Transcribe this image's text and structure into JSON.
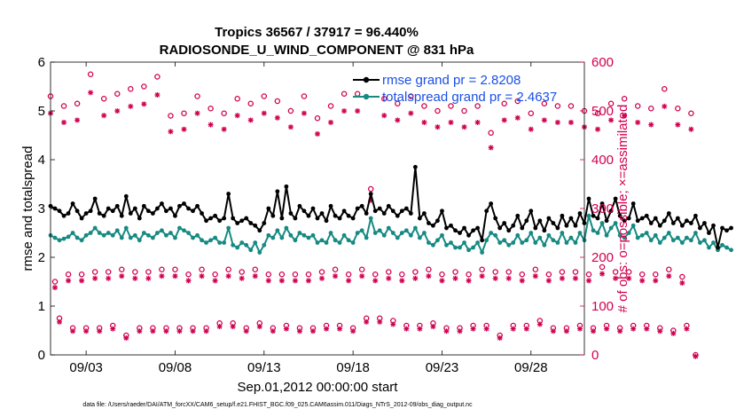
{
  "chart_data": {
    "type": "line",
    "title_line1": "Tropics 36567 / 37917 = 96.440%",
    "title_line2": "RADIOSONDE_U_WIND_COMPONENT @ 831 hPa",
    "xlabel": "Sep.01,2012 00:00:00 start",
    "ylabel_left": "rmse and totalspread",
    "ylabel_right": "# of obs: o=possible; ×=assimilated",
    "footer": "data file: /Users/raeder/DAI/ATM_forcXX/CAM6_setup/f.e21.FHIST_BGC.f09_025.CAM6assim.011/Diags_NTrS_2012-09/obs_diag_output.nc",
    "xlim": [
      1.0,
      31.0
    ],
    "ylim_left": [
      0,
      6
    ],
    "ylim_right": [
      0,
      600
    ],
    "x_ticks": [
      3,
      8,
      13,
      18,
      23,
      28
    ],
    "x_tick_labels": [
      "09/03",
      "09/08",
      "09/13",
      "09/18",
      "09/23",
      "09/28"
    ],
    "y_ticks_left": [
      0,
      1,
      2,
      3,
      4,
      5,
      6
    ],
    "y_ticks_right": [
      0,
      100,
      200,
      300,
      400,
      500,
      600
    ],
    "legend": [
      "rmse grand pr = 2.8208",
      "totalspread grand pr = 2.4637"
    ],
    "series": [
      {
        "name": "rmse",
        "color": "#000000",
        "x_start": 1.0,
        "dx": 0.25,
        "values": [
          3.05,
          3.0,
          2.95,
          2.85,
          2.9,
          3.1,
          2.95,
          2.8,
          2.9,
          2.95,
          3.2,
          2.9,
          2.85,
          3.0,
          2.95,
          3.05,
          2.85,
          3.25,
          2.9,
          3.0,
          2.8,
          3.05,
          2.95,
          2.9,
          3.0,
          3.1,
          2.95,
          3.0,
          2.85,
          3.05,
          3.1,
          3.0,
          2.95,
          3.05,
          2.9,
          2.75,
          2.8,
          2.85,
          2.75,
          2.8,
          3.3,
          2.8,
          2.7,
          2.75,
          2.8,
          2.7,
          2.65,
          2.55,
          2.7,
          3.0,
          2.85,
          3.35,
          2.8,
          3.45,
          2.9,
          2.8,
          3.05,
          2.95,
          2.85,
          3.0,
          2.8,
          2.9,
          2.75,
          3.05,
          2.85,
          2.8,
          2.95,
          2.85,
          2.8,
          3.0,
          3.05,
          2.9,
          3.3,
          2.95,
          3.0,
          2.9,
          3.05,
          2.95,
          2.85,
          2.95,
          3.0,
          2.9,
          3.85,
          2.8,
          2.9,
          2.7,
          2.65,
          2.75,
          2.95,
          2.6,
          2.65,
          2.55,
          2.5,
          2.6,
          2.45,
          2.55,
          2.6,
          2.35,
          2.95,
          3.1,
          2.8,
          2.6,
          2.7,
          2.55,
          2.65,
          2.85,
          2.6,
          2.75,
          2.95,
          2.6,
          2.75,
          2.55,
          2.8,
          2.7,
          2.6,
          2.85,
          2.65,
          2.8,
          2.65,
          2.9,
          2.7,
          3.2,
          2.85,
          2.8,
          3.1,
          2.75,
          2.95,
          3.2,
          2.85,
          2.75,
          2.8,
          3.1,
          2.75,
          2.8,
          2.85,
          2.7,
          2.8,
          2.65,
          2.75,
          2.9,
          2.7,
          2.8,
          2.65,
          2.75,
          2.7,
          2.85,
          2.6,
          2.7,
          2.5,
          2.65,
          2.2,
          2.6,
          2.55,
          2.6
        ]
      },
      {
        "name": "totalspread",
        "color": "#168a82",
        "x_start": 1.0,
        "dx": 0.25,
        "values": [
          2.45,
          2.4,
          2.35,
          2.38,
          2.42,
          2.5,
          2.4,
          2.35,
          2.45,
          2.5,
          2.6,
          2.5,
          2.45,
          2.5,
          2.45,
          2.55,
          2.4,
          2.6,
          2.4,
          2.45,
          2.35,
          2.5,
          2.45,
          2.4,
          2.5,
          2.55,
          2.45,
          2.5,
          2.4,
          2.6,
          2.55,
          2.5,
          2.4,
          2.45,
          2.35,
          2.3,
          2.35,
          2.4,
          2.3,
          2.3,
          2.6,
          2.25,
          2.2,
          2.3,
          2.25,
          2.15,
          2.3,
          2.1,
          2.25,
          2.45,
          2.4,
          2.55,
          2.4,
          2.6,
          2.45,
          2.35,
          2.5,
          2.45,
          2.4,
          2.45,
          2.3,
          2.35,
          2.3,
          2.5,
          2.35,
          2.3,
          2.45,
          2.35,
          2.3,
          2.5,
          2.55,
          2.4,
          2.8,
          2.5,
          2.55,
          2.45,
          2.6,
          2.5,
          2.4,
          2.5,
          2.55,
          2.45,
          2.6,
          2.4,
          2.5,
          2.3,
          2.25,
          2.35,
          2.45,
          2.25,
          2.3,
          2.2,
          2.2,
          2.3,
          2.15,
          2.2,
          2.3,
          2.1,
          2.35,
          2.5,
          2.45,
          2.3,
          2.35,
          2.25,
          2.3,
          2.45,
          2.3,
          2.35,
          2.5,
          2.3,
          2.4,
          2.25,
          2.45,
          2.35,
          2.3,
          2.5,
          2.3,
          2.4,
          2.3,
          2.5,
          2.35,
          2.85,
          2.55,
          2.5,
          2.7,
          2.45,
          2.6,
          2.7,
          2.45,
          2.4,
          2.5,
          2.65,
          2.4,
          2.45,
          2.5,
          2.35,
          2.45,
          2.3,
          2.4,
          2.5,
          2.35,
          2.4,
          2.3,
          2.4,
          2.35,
          2.5,
          2.3,
          2.35,
          2.2,
          2.3,
          2.15,
          2.25,
          2.2,
          2.15
        ]
      }
    ],
    "obs_counts": {
      "color": "#d1004f",
      "x_start": 1.0,
      "dx": 0.25,
      "possible": [
        530,
        150,
        75,
        510,
        165,
        55,
        515,
        165,
        55,
        575,
        170,
        55,
        525,
        170,
        60,
        535,
        175,
        40,
        545,
        170,
        55,
        550,
        170,
        55,
        570,
        175,
        55,
        490,
        175,
        55,
        495,
        165,
        55,
        530,
        175,
        55,
        505,
        165,
        65,
        495,
        175,
        65,
        525,
        170,
        55,
        515,
        175,
        65,
        530,
        165,
        55,
        520,
        165,
        60,
        500,
        165,
        55,
        530,
        165,
        55,
        485,
        170,
        60,
        510,
        175,
        60,
        535,
        165,
        55,
        535,
        175,
        75,
        340,
        165,
        75,
        525,
        170,
        70,
        515,
        165,
        60,
        530,
        170,
        60,
        510,
        175,
        65,
        500,
        165,
        55,
        510,
        170,
        55,
        500,
        165,
        60,
        510,
        175,
        60,
        455,
        170,
        40,
        515,
        170,
        60,
        520,
        165,
        60,
        495,
        175,
        70,
        515,
        165,
        55,
        510,
        170,
        55,
        510,
        170,
        60,
        500,
        165,
        55,
        495,
        180,
        60,
        515,
        170,
        55,
        525,
        170,
        60,
        510,
        165,
        60,
        505,
        165,
        55,
        545,
        175,
        50,
        505,
        160,
        60,
        495,
        0
      ]
    }
  }
}
